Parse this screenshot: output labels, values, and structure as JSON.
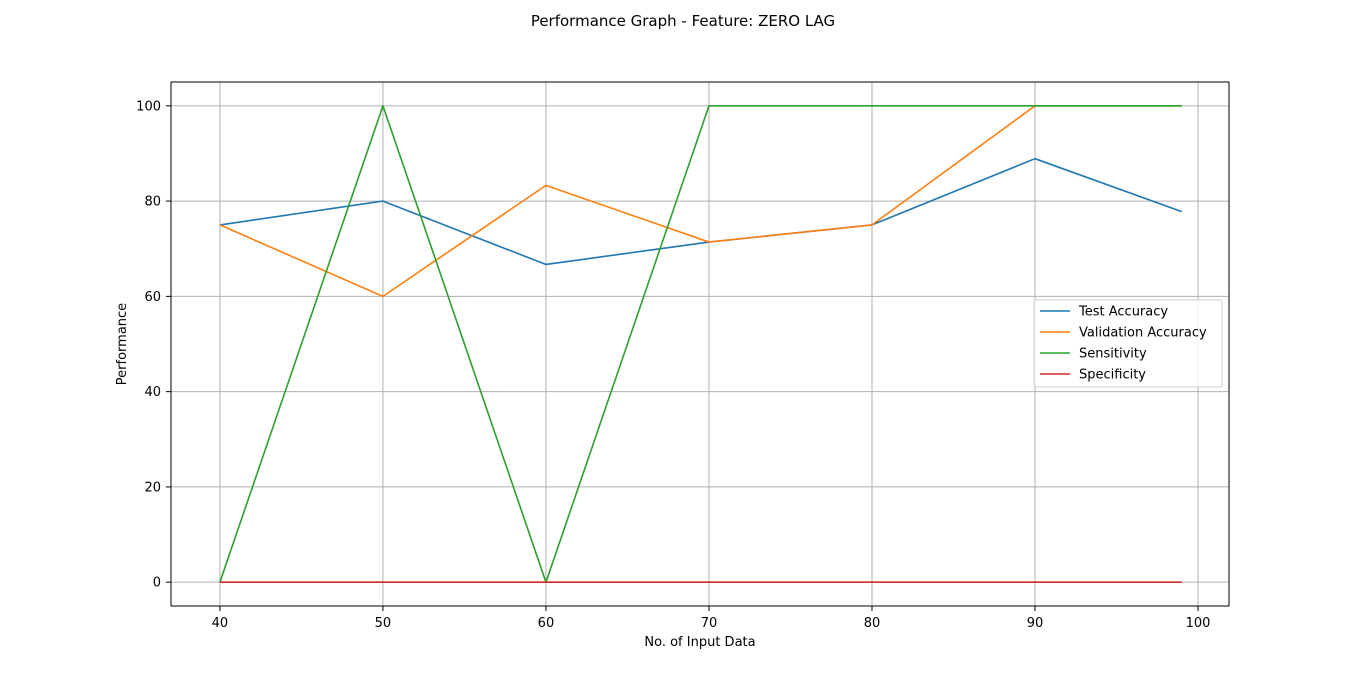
{
  "chart_data": {
    "type": "line",
    "title": "Performance Graph - Feature: ZERO LAG",
    "xlabel": "No. of Input Data",
    "ylabel": "Performance",
    "x": [
      40,
      50,
      60,
      70,
      80,
      90,
      99
    ],
    "xlim": [
      37,
      101.9
    ],
    "ylim": [
      -5,
      105
    ],
    "xticks": [
      40,
      50,
      60,
      70,
      80,
      90,
      100
    ],
    "yticks": [
      0,
      20,
      40,
      60,
      80,
      100
    ],
    "grid": true,
    "legend_position": "center-right",
    "series": [
      {
        "name": "Test Accuracy",
        "color": "#1f77b4",
        "values": [
          75,
          80,
          66.7,
          71.4,
          75,
          88.9,
          77.8
        ]
      },
      {
        "name": "Validation Accuracy",
        "color": "#ff7f0e",
        "values": [
          75,
          60,
          83.3,
          71.4,
          75,
          100,
          100
        ]
      },
      {
        "name": "Sensitivity",
        "color": "#2ca02c",
        "values": [
          0,
          100,
          0,
          100,
          100,
          100,
          100
        ]
      },
      {
        "name": "Specificity",
        "color": "#d62728",
        "values": [
          0,
          0,
          0,
          0,
          0,
          0,
          0
        ]
      }
    ]
  }
}
